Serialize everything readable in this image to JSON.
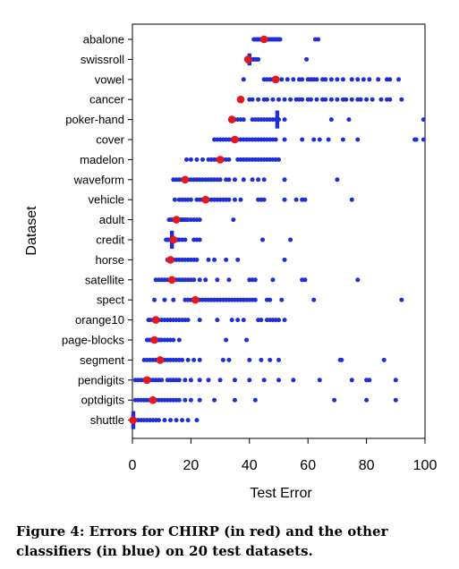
{
  "caption": "Figure 4: Errors for CHIRP (in red) and the other classifiers (in blue) on 20 test datasets.",
  "colors": {
    "chirp": "#e8161d",
    "others": "#1f2fd6"
  },
  "chart_data": {
    "type": "scatter",
    "xlabel": "Test Error",
    "ylabel": "Dataset",
    "xlim": [
      0,
      100
    ],
    "xticks": [
      0,
      20,
      40,
      60,
      80,
      100
    ],
    "grid": false,
    "categories": [
      "abalone",
      "swissroll",
      "vowel",
      "cancer",
      "poker-hand",
      "cover",
      "madelon",
      "waveform",
      "vehicle",
      "adult",
      "credit",
      "horse",
      "satellite",
      "spect",
      "orange10",
      "page-blocks",
      "segment",
      "pendigits",
      "optdigits",
      "shuttle"
    ],
    "series": [
      {
        "color": "blue",
        "points": [
          [
            "abalone",
            [
              41.5,
              42,
              42.5,
              43,
              43.5,
              44,
              44.5,
              45,
              45.5,
              46,
              46.5,
              47,
              47.5,
              48,
              48.5,
              49,
              49.5,
              50,
              50.5,
              62.5,
              63.5
            ]
          ],
          [
            "swissroll",
            [
              39,
              39.5,
              40,
              40.5,
              41,
              41.5,
              42,
              42.5,
              43,
              59.5
            ]
          ],
          [
            "vowel",
            [
              38,
              45,
              46,
              47,
              48,
              49,
              51,
              53,
              55,
              57,
              58,
              60,
              61,
              62,
              63,
              65,
              66,
              68,
              70,
              72,
              75,
              77,
              79,
              81,
              84,
              87,
              88,
              91
            ]
          ],
          [
            "cancer",
            [
              37,
              40,
              41,
              43,
              45,
              46,
              48,
              50,
              52,
              54,
              56,
              57,
              58,
              60,
              61,
              63,
              65,
              66,
              68,
              70,
              72,
              73,
              75,
              77,
              78,
              80,
              82,
              85,
              87,
              88,
              92
            ]
          ],
          [
            "poker-hand",
            [
              34,
              35,
              36,
              37,
              38,
              41,
              42,
              43,
              44,
              45,
              46,
              47,
              48,
              49,
              49.5,
              50,
              52,
              68,
              74,
              99.5
            ]
          ],
          [
            "cover",
            [
              28,
              29,
              30,
              31,
              32,
              33,
              34,
              36,
              37,
              38,
              39,
              40,
              41,
              42,
              43,
              44,
              45,
              46,
              47,
              48,
              49,
              52,
              58,
              62,
              64,
              67,
              72,
              77,
              96.5,
              97,
              99.5
            ]
          ],
          [
            "madelon",
            [
              18.5,
              20,
              22,
              24,
              26,
              27,
              28,
              29,
              31,
              32,
              33,
              36,
              37,
              38,
              39,
              40,
              41,
              42,
              43,
              44,
              45,
              46,
              47,
              48,
              49,
              50
            ]
          ],
          [
            "waveform",
            [
              14,
              15,
              16,
              17,
              18,
              19,
              20,
              21,
              22,
              23,
              24,
              25,
              26,
              27,
              28,
              29,
              30,
              32,
              33,
              35,
              38,
              41,
              43,
              45,
              52,
              70
            ]
          ],
          [
            "vehicle",
            [
              14.5,
              16,
              17,
              18,
              19,
              20,
              22,
              23,
              24,
              25,
              26,
              27,
              28,
              29,
              30,
              31,
              32,
              33,
              35,
              37,
              43,
              44,
              45,
              52,
              56,
              58,
              59,
              75
            ]
          ],
          [
            "adult",
            [
              12.5,
              13,
              13.5,
              14,
              14.5,
              15,
              15.5,
              16,
              16.5,
              17,
              17.5,
              18,
              18.5,
              19,
              20,
              21,
              22,
              23,
              34.5
            ]
          ],
          [
            "credit",
            [
              11.5,
              12,
              12.5,
              13,
              13.5,
              14,
              14.5,
              15,
              15.5,
              16,
              17,
              18,
              21,
              22,
              23,
              44.5,
              54
            ]
          ],
          [
            "horse",
            [
              12,
              13,
              14,
              15,
              16,
              17,
              18,
              19,
              20,
              21,
              22,
              26,
              28,
              32,
              36,
              52
            ]
          ],
          [
            "satellite",
            [
              8,
              9,
              10,
              11,
              12,
              13,
              14,
              15,
              16,
              17,
              18,
              19,
              20,
              21,
              23,
              25,
              29,
              33,
              40,
              41,
              42,
              48,
              58,
              59,
              77
            ]
          ],
          [
            "spect",
            [
              7.5,
              11,
              14,
              18,
              19,
              20,
              21,
              22,
              23,
              24,
              25,
              26,
              27,
              28,
              29,
              30,
              31,
              32,
              33,
              34,
              35,
              36,
              37,
              38,
              39,
              40,
              41,
              42,
              46,
              47,
              51,
              62,
              92
            ]
          ],
          [
            "orange10",
            [
              5.5,
              6,
              7,
              8,
              9,
              10,
              11,
              12,
              13,
              14,
              15,
              16,
              17,
              18,
              19,
              23,
              29,
              34,
              36,
              38,
              43,
              44,
              46,
              47,
              48,
              49,
              50,
              52
            ]
          ],
          [
            "page-blocks",
            [
              5,
              5.5,
              6,
              6.5,
              7,
              7.5,
              8,
              8.5,
              9,
              9.5,
              10,
              11,
              12,
              13,
              14,
              16,
              32,
              39
            ]
          ],
          [
            "segment",
            [
              4,
              5,
              6,
              7,
              8,
              9,
              10,
              11,
              12,
              13,
              14,
              15,
              16,
              17,
              19,
              21,
              23,
              31,
              33,
              40,
              44,
              47,
              50,
              71,
              71.5,
              86
            ]
          ],
          [
            "pendigits",
            [
              1,
              2,
              3,
              4,
              5,
              6,
              7,
              8,
              9,
              10,
              12,
              13,
              14,
              15,
              16,
              18,
              20,
              23,
              26,
              30,
              35,
              40,
              45,
              50,
              55,
              64,
              75,
              80,
              81,
              90
            ]
          ],
          [
            "optdigits",
            [
              1,
              2,
              3,
              4,
              5,
              6,
              7,
              8,
              9,
              10,
              11,
              12,
              13,
              14,
              15,
              16,
              18,
              20,
              23,
              28,
              35,
              42,
              69,
              80,
              90
            ]
          ],
          [
            "shuttle",
            [
              0.2,
              0.4,
              0.6,
              1,
              2,
              3,
              4,
              5,
              6,
              7,
              8,
              9,
              11,
              13,
              15,
              17,
              19,
              22
            ]
          ]
        ]
      },
      {
        "color": "red",
        "points": [
          [
            "abalone",
            [
              45
            ]
          ],
          [
            "swissroll",
            [
              39.5
            ]
          ],
          [
            "vowel",
            [
              49
            ]
          ],
          [
            "cancer",
            [
              37
            ]
          ],
          [
            "poker-hand",
            [
              34
            ]
          ],
          [
            "cover",
            [
              35
            ]
          ],
          [
            "madelon",
            [
              30
            ]
          ],
          [
            "waveform",
            [
              18
            ]
          ],
          [
            "vehicle",
            [
              25
            ]
          ],
          [
            "adult",
            [
              15
            ]
          ],
          [
            "credit",
            [
              14
            ]
          ],
          [
            "horse",
            [
              13
            ]
          ],
          [
            "satellite",
            [
              13.5
            ]
          ],
          [
            "spect",
            [
              21.5
            ]
          ],
          [
            "orange10",
            [
              8
            ]
          ],
          [
            "page-blocks",
            [
              7.5
            ]
          ],
          [
            "segment",
            [
              9.5
            ]
          ],
          [
            "pendigits",
            [
              5
            ]
          ],
          [
            "optdigits",
            [
              7
            ]
          ],
          [
            "shuttle",
            [
              0.2
            ]
          ]
        ]
      }
    ],
    "vertical_bars": [
      {
        "category": "shuttle",
        "x": 0.3,
        "span": [
          -0.45,
          0.45
        ]
      },
      {
        "category": "poker-hand",
        "x": 49.5,
        "span": [
          -0.45,
          0.45
        ]
      },
      {
        "category": "swissroll",
        "x": 40,
        "span": [
          -0.3,
          0.3
        ]
      },
      {
        "category": "credit",
        "x": 13.5,
        "span": [
          -0.45,
          0.45
        ]
      }
    ]
  }
}
